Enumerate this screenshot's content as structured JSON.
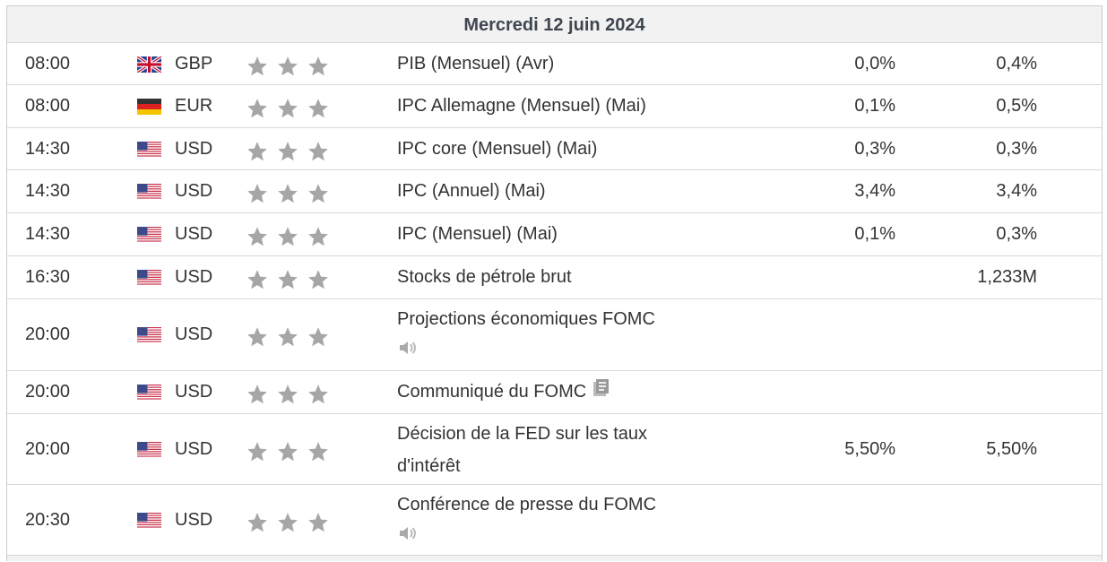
{
  "header": {
    "date": "Mercredi 12 juin 2024"
  },
  "rows": [
    {
      "time": "08:00",
      "flag": "gb",
      "currency": "GBP",
      "stars": 3,
      "event": "PIB (Mensuel) (Avr)",
      "actual": "0,0%",
      "forecast": "0,4%",
      "icon": ""
    },
    {
      "time": "08:00",
      "flag": "de",
      "currency": "EUR",
      "stars": 3,
      "event": "IPC Allemagne (Mensuel) (Mai)",
      "actual": "0,1%",
      "forecast": "0,5%",
      "icon": ""
    },
    {
      "time": "14:30",
      "flag": "us",
      "currency": "USD",
      "stars": 3,
      "event": "IPC core (Mensuel) (Mai)",
      "actual": "0,3%",
      "forecast": "0,3%",
      "icon": ""
    },
    {
      "time": "14:30",
      "flag": "us",
      "currency": "USD",
      "stars": 3,
      "event": "IPC (Annuel) (Mai)",
      "actual": "3,4%",
      "forecast": "3,4%",
      "icon": ""
    },
    {
      "time": "14:30",
      "flag": "us",
      "currency": "USD",
      "stars": 3,
      "event": "IPC (Mensuel) (Mai)",
      "actual": "0,1%",
      "forecast": "0,3%",
      "icon": ""
    },
    {
      "time": "16:30",
      "flag": "us",
      "currency": "USD",
      "stars": 3,
      "event": "Stocks de pétrole brut",
      "actual": "",
      "forecast": "1,233M",
      "icon": ""
    },
    {
      "time": "20:00",
      "flag": "us",
      "currency": "USD",
      "stars": 3,
      "event": "Projections économiques FOMC",
      "actual": "",
      "forecast": "",
      "icon": "speaker-icon"
    },
    {
      "time": "20:00",
      "flag": "us",
      "currency": "USD",
      "stars": 3,
      "event": "Communiqué du FOMC",
      "actual": "",
      "forecast": "",
      "icon": "document-icon"
    },
    {
      "time": "20:00",
      "flag": "us",
      "currency": "USD",
      "stars": 3,
      "event": "Décision de la FED sur les taux d'intérêt",
      "actual": "5,50%",
      "forecast": "5,50%",
      "icon": ""
    },
    {
      "time": "20:30",
      "flag": "us",
      "currency": "USD",
      "stars": 3,
      "event": "Conférence de presse du FOMC",
      "actual": "",
      "forecast": "",
      "icon": "speaker-icon"
    }
  ],
  "colors": {
    "star": "#a6a6a6",
    "header_bg": "#f2f2f2",
    "text": "#333333"
  }
}
